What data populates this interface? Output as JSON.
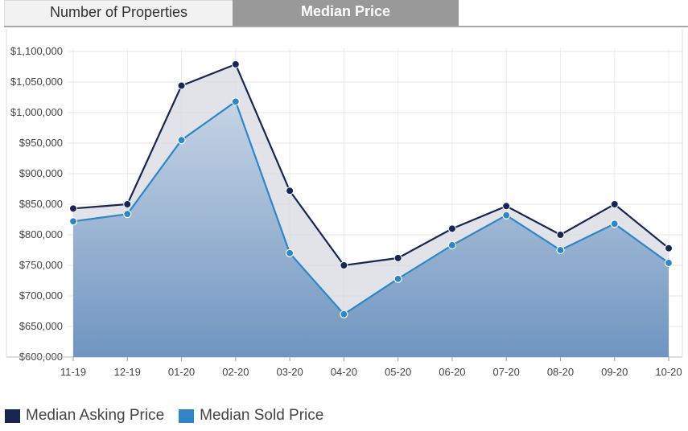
{
  "tabs": [
    {
      "label": "Number of Properties"
    },
    {
      "label": "Median Price"
    }
  ],
  "colors": {
    "asking": "#1b2552",
    "sold": "#2e86c8",
    "sold_fill_top": "#c6d4e5",
    "sold_fill_bottom": "#6f95c0",
    "band_fill": "#d7d9e2"
  },
  "chart_data": {
    "type": "area",
    "categories": [
      "11-19",
      "12-19",
      "01-20",
      "02-20",
      "03-20",
      "04-20",
      "05-20",
      "06-20",
      "07-20",
      "08-20",
      "09-20",
      "10-20"
    ],
    "series": [
      {
        "name": "Median Asking Price",
        "values": [
          843000,
          850000,
          1044000,
          1079000,
          872000,
          750000,
          762000,
          810000,
          847000,
          800000,
          850000,
          778000
        ]
      },
      {
        "name": "Median Sold Price",
        "values": [
          822000,
          834000,
          955000,
          1018000,
          770000,
          670000,
          728000,
          783000,
          832000,
          775000,
          818000,
          754000
        ]
      }
    ],
    "ylim": [
      600000,
      1100000
    ],
    "yticks": [
      "$600,000",
      "$650,000",
      "$700,000",
      "$750,000",
      "$800,000",
      "$850,000",
      "$900,000",
      "$950,000",
      "$1,000,000",
      "$1,050,000",
      "$1,100,000"
    ],
    "ytick_values": [
      600000,
      650000,
      700000,
      750000,
      800000,
      850000,
      900000,
      950000,
      1000000,
      1050000,
      1100000
    ],
    "grid": true,
    "legend_position": "bottom-left"
  },
  "legend": [
    {
      "label": "Median Asking Price"
    },
    {
      "label": "Median Sold Price"
    }
  ]
}
